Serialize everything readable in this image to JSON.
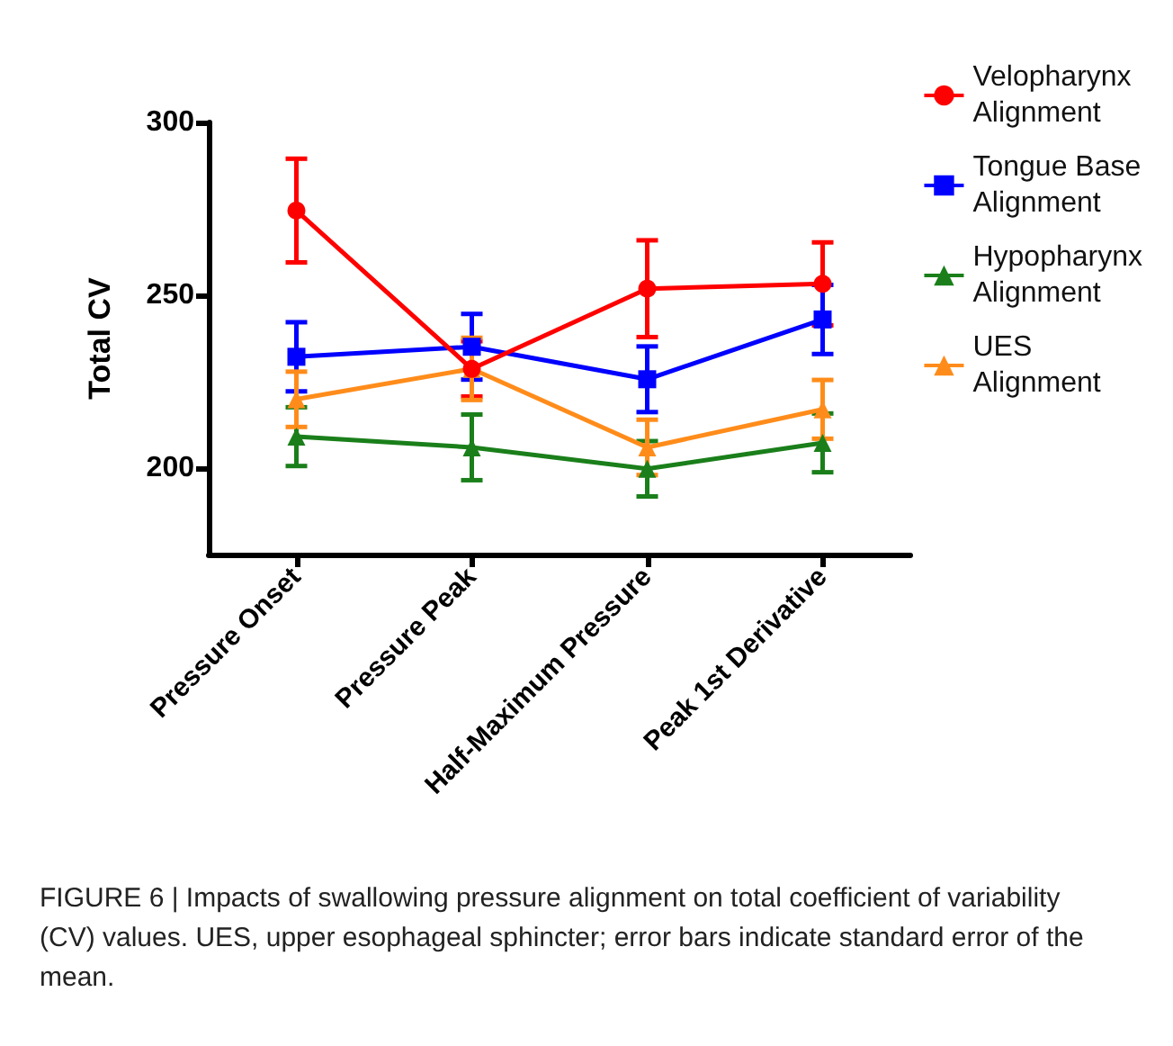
{
  "chart_data": {
    "type": "line",
    "ylabel": "Total CV",
    "categories": [
      "Pressure Onset",
      "Pressure Peak",
      "Half-Maximum Pressure",
      "Peak 1st Derivative"
    ],
    "ylim": [
      175,
      300
    ],
    "yticks": [
      200,
      250,
      300
    ],
    "legend": "top right",
    "grid": false,
    "line_style": "solid",
    "series": [
      {
        "name": "Velopharynx Alignment",
        "color": "#ff0000",
        "marker": "circle",
        "values": [
          274.5,
          228.7,
          251.9,
          253.3
        ],
        "errors": [
          15,
          8,
          14,
          12
        ]
      },
      {
        "name": "Tongue Base Alignment",
        "color": "#0000ff",
        "marker": "square",
        "values": [
          232.2,
          235.1,
          225.7,
          243
        ],
        "errors": [
          10,
          9.5,
          9.5,
          10
        ]
      },
      {
        "name": "Hypopharynx Alignment",
        "color": "#1a7f1a",
        "marker": "triangle",
        "values": [
          209.1,
          206,
          199.8,
          207.3
        ],
        "errors": [
          8.5,
          9.5,
          8,
          8.5
        ]
      },
      {
        "name": "UES Alignment",
        "color": "#ff8c1a",
        "marker": "triangle",
        "values": [
          219.9,
          228.7,
          206,
          217
        ],
        "errors": [
          8,
          9,
          8,
          8.5
        ]
      }
    ],
    "annotations": [
      "FIGURE 6 | Impacts of swallowing pressure alignment on total coefficient of variability (CV) values. UES, upper esophageal sphincter; error bars indicate standard error of the mean."
    ]
  }
}
